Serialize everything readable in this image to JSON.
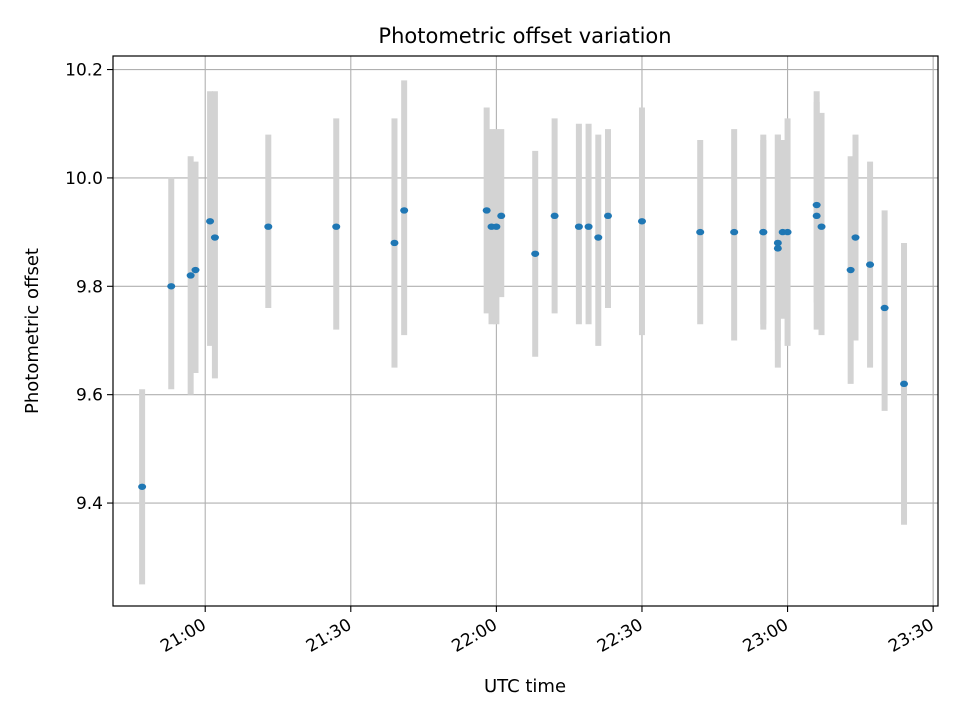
{
  "chart_data": {
    "type": "scatter",
    "title": "Photometric offset variation",
    "xlabel": "UTC time",
    "ylabel": "Photometric offset",
    "grid": true,
    "error_bars": true,
    "colors": {
      "point": "#1f77b4",
      "errorbar": "#d3d3d3",
      "grid": "#b0b0b0",
      "axis": "#000000"
    },
    "x_ticks": [
      "21:00",
      "21:30",
      "22:00",
      "22:30",
      "23:00",
      "23:30"
    ],
    "y_ticks": [
      "9.4",
      "9.6",
      "9.8",
      "10.0",
      "10.2"
    ],
    "xlim": [
      "20:41",
      "23:31"
    ],
    "ylim": [
      9.21,
      10.225
    ],
    "points": [
      {
        "x": "20:47",
        "y": 9.43,
        "ylo": 9.25,
        "yhi": 9.61
      },
      {
        "x": "20:53",
        "y": 9.8,
        "ylo": 9.61,
        "yhi": 10.0
      },
      {
        "x": "20:57",
        "y": 9.82,
        "ylo": 9.6,
        "yhi": 10.04
      },
      {
        "x": "20:58",
        "y": 9.83,
        "ylo": 9.64,
        "yhi": 10.03
      },
      {
        "x": "21:01",
        "y": 9.92,
        "ylo": 9.69,
        "yhi": 10.16
      },
      {
        "x": "21:02",
        "y": 9.89,
        "ylo": 9.63,
        "yhi": 10.16
      },
      {
        "x": "21:13",
        "y": 9.91,
        "ylo": 9.76,
        "yhi": 10.08
      },
      {
        "x": "21:27",
        "y": 9.91,
        "ylo": 9.72,
        "yhi": 10.11
      },
      {
        "x": "21:39",
        "y": 9.88,
        "ylo": 9.65,
        "yhi": 10.11
      },
      {
        "x": "21:41",
        "y": 9.94,
        "ylo": 9.71,
        "yhi": 10.18
      },
      {
        "x": "21:58",
        "y": 9.94,
        "ylo": 9.75,
        "yhi": 10.13
      },
      {
        "x": "21:59",
        "y": 9.91,
        "ylo": 9.73,
        "yhi": 10.09
      },
      {
        "x": "22:00",
        "y": 9.91,
        "ylo": 9.73,
        "yhi": 10.09
      },
      {
        "x": "22:01",
        "y": 9.93,
        "ylo": 9.78,
        "yhi": 10.09
      },
      {
        "x": "22:08",
        "y": 9.86,
        "ylo": 9.67,
        "yhi": 10.05
      },
      {
        "x": "22:12",
        "y": 9.93,
        "ylo": 9.75,
        "yhi": 10.11
      },
      {
        "x": "22:17",
        "y": 9.91,
        "ylo": 9.73,
        "yhi": 10.1
      },
      {
        "x": "22:19",
        "y": 9.91,
        "ylo": 9.73,
        "yhi": 10.1
      },
      {
        "x": "22:21",
        "y": 9.89,
        "ylo": 9.69,
        "yhi": 10.08
      },
      {
        "x": "22:23",
        "y": 9.93,
        "ylo": 9.76,
        "yhi": 10.09
      },
      {
        "x": "22:30",
        "y": 9.92,
        "ylo": 9.71,
        "yhi": 10.13
      },
      {
        "x": "22:42",
        "y": 9.9,
        "ylo": 9.73,
        "yhi": 10.07
      },
      {
        "x": "22:49",
        "y": 9.9,
        "ylo": 9.7,
        "yhi": 10.09
      },
      {
        "x": "22:55",
        "y": 9.9,
        "ylo": 9.72,
        "yhi": 10.08
      },
      {
        "x": "22:55",
        "y": 9.9,
        "ylo": 9.73,
        "yhi": 10.07
      },
      {
        "x": "22:58",
        "y": 9.88,
        "ylo": 9.7,
        "yhi": 10.08
      },
      {
        "x": "22:58",
        "y": 9.87,
        "ylo": 9.65,
        "yhi": 10.08
      },
      {
        "x": "22:59",
        "y": 9.9,
        "ylo": 9.74,
        "yhi": 10.07
      },
      {
        "x": "23:00",
        "y": 9.9,
        "ylo": 9.69,
        "yhi": 10.11
      },
      {
        "x": "23:06",
        "y": 9.93,
        "ylo": 9.72,
        "yhi": 10.16
      },
      {
        "x": "23:06",
        "y": 9.95,
        "ylo": 9.77,
        "yhi": 10.14
      },
      {
        "x": "23:07",
        "y": 9.91,
        "ylo": 9.71,
        "yhi": 10.12
      },
      {
        "x": "23:13",
        "y": 9.83,
        "ylo": 9.62,
        "yhi": 10.04
      },
      {
        "x": "23:14",
        "y": 9.89,
        "ylo": 9.7,
        "yhi": 10.08
      },
      {
        "x": "23:17",
        "y": 9.84,
        "ylo": 9.65,
        "yhi": 10.03
      },
      {
        "x": "23:20",
        "y": 9.76,
        "ylo": 9.57,
        "yhi": 9.94
      },
      {
        "x": "23:24",
        "y": 9.62,
        "ylo": 9.36,
        "yhi": 9.88
      }
    ]
  }
}
